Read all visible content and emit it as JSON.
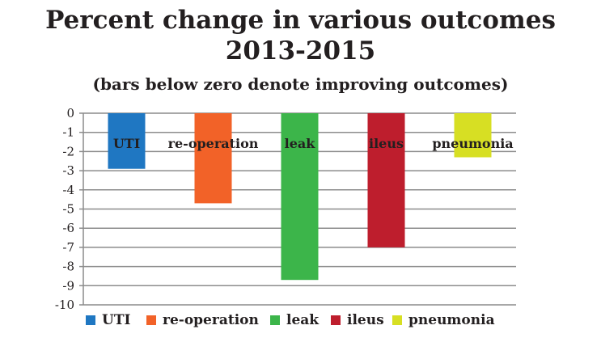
{
  "chart_data": {
    "type": "bar",
    "title_line1": "Percent change in various outcomes",
    "title_line2": "2013-2015",
    "subtitle": "(bars below zero denote improving outcomes)",
    "categories": [
      "UTI",
      "re-operation",
      "leak",
      "ileus",
      "pneumonia"
    ],
    "values": [
      -2.9,
      -4.7,
      -8.7,
      -7.0,
      -2.3
    ],
    "colors": [
      "#1f77c2",
      "#f26228",
      "#3cb54a",
      "#be1e2d",
      "#d7df23"
    ],
    "ylim": [
      -10,
      0
    ],
    "yticks": [
      "0",
      "-1",
      "-2",
      "-3",
      "-4",
      "-5",
      "-6",
      "-7",
      "-8",
      "-9",
      "-10"
    ],
    "grid": true,
    "legend_position": "bottom",
    "xlabel": "",
    "ylabel": ""
  }
}
